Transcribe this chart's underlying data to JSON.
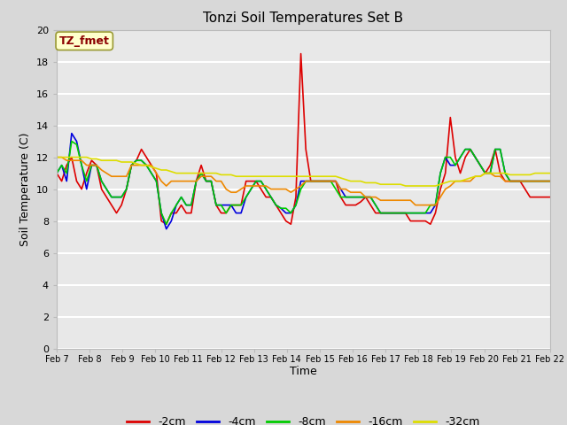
{
  "title": "Tonzi Soil Temperatures Set B",
  "xlabel": "Time",
  "ylabel": "Soil Temperature (C)",
  "ylim": [
    0,
    20
  ],
  "yticks": [
    0,
    2,
    4,
    6,
    8,
    10,
    12,
    14,
    16,
    18,
    20
  ],
  "x_labels": [
    "Feb 7",
    "Feb 8",
    "Feb 9",
    "Feb 10",
    "Feb 11",
    "Feb 12",
    "Feb 13",
    "Feb 14",
    "Feb 15",
    "Feb 16",
    "Feb 17",
    "Feb 18",
    "Feb 19",
    "Feb 20",
    "Feb 21",
    "Feb 22"
  ],
  "fig_bg_color": "#d8d8d8",
  "plot_bg_color": "#e8e8e8",
  "annotation_text": "TZ_fmet",
  "annotation_color": "#8b0000",
  "annotation_bg": "#ffffcc",
  "annotation_edge": "#999933",
  "series": {
    "neg2cm": {
      "label": "-2cm",
      "color": "#dd0000",
      "data": [
        11.0,
        10.5,
        11.5,
        12.0,
        10.5,
        10.0,
        11.0,
        11.8,
        11.5,
        10.0,
        9.5,
        9.0,
        8.5,
        9.0,
        10.0,
        11.5,
        11.8,
        12.5,
        12.0,
        11.5,
        11.0,
        8.0,
        7.8,
        8.5,
        8.5,
        9.0,
        8.5,
        8.5,
        10.5,
        11.5,
        10.5,
        10.5,
        9.0,
        8.5,
        8.5,
        9.0,
        9.0,
        9.0,
        10.5,
        10.5,
        10.5,
        10.0,
        9.5,
        9.5,
        9.0,
        8.5,
        8.0,
        7.8,
        9.5,
        18.5,
        12.5,
        10.5,
        10.5,
        10.5,
        10.5,
        10.5,
        10.5,
        9.5,
        9.0,
        9.0,
        9.0,
        9.2,
        9.5,
        9.0,
        8.5,
        8.5,
        8.5,
        8.5,
        8.5,
        8.5,
        8.5,
        8.0,
        8.0,
        8.0,
        8.0,
        7.8,
        8.5,
        10.0,
        11.0,
        14.5,
        12.0,
        11.0,
        12.0,
        12.5,
        12.0,
        11.5,
        11.0,
        11.5,
        12.5,
        11.0,
        10.5,
        10.5,
        10.5,
        10.5,
        10.0,
        9.5,
        9.5,
        9.5,
        9.5,
        9.5
      ]
    },
    "neg4cm": {
      "label": "-4cm",
      "color": "#0000dd",
      "data": [
        11.0,
        11.5,
        10.5,
        13.5,
        13.0,
        11.5,
        10.0,
        11.5,
        11.5,
        10.5,
        10.0,
        9.5,
        9.5,
        9.5,
        10.0,
        11.5,
        11.8,
        11.8,
        11.5,
        11.0,
        10.5,
        8.5,
        7.5,
        8.0,
        9.0,
        9.5,
        9.0,
        9.0,
        10.5,
        11.0,
        10.5,
        10.5,
        9.0,
        9.0,
        9.0,
        9.0,
        8.5,
        8.5,
        9.5,
        10.0,
        10.5,
        10.5,
        10.0,
        9.5,
        9.0,
        8.8,
        8.5,
        8.5,
        9.0,
        10.5,
        10.5,
        10.5,
        10.5,
        10.5,
        10.5,
        10.5,
        10.5,
        10.0,
        9.5,
        9.5,
        9.5,
        9.5,
        9.5,
        9.5,
        9.0,
        8.5,
        8.5,
        8.5,
        8.5,
        8.5,
        8.5,
        8.5,
        8.5,
        8.5,
        8.5,
        8.5,
        9.0,
        11.0,
        12.0,
        11.5,
        11.5,
        12.0,
        12.5,
        12.5,
        12.0,
        11.5,
        11.0,
        11.0,
        12.5,
        12.5,
        11.0,
        10.5,
        10.5,
        10.5,
        10.5,
        10.5,
        10.5,
        10.5,
        10.5,
        10.5
      ]
    },
    "neg8cm": {
      "label": "-8cm",
      "color": "#00cc00",
      "data": [
        11.0,
        11.5,
        11.0,
        13.0,
        12.8,
        11.5,
        10.5,
        11.5,
        11.5,
        10.5,
        10.0,
        9.5,
        9.5,
        9.5,
        10.0,
        11.5,
        11.8,
        11.8,
        11.5,
        11.0,
        10.5,
        8.5,
        7.8,
        8.5,
        9.0,
        9.5,
        9.0,
        9.0,
        10.5,
        11.0,
        10.5,
        10.5,
        9.0,
        9.0,
        8.5,
        9.0,
        9.0,
        9.0,
        9.5,
        10.0,
        10.5,
        10.5,
        10.0,
        9.5,
        9.0,
        8.8,
        8.8,
        8.5,
        9.0,
        10.0,
        10.5,
        10.5,
        10.5,
        10.5,
        10.5,
        10.5,
        10.0,
        9.5,
        9.5,
        9.5,
        9.5,
        9.5,
        9.5,
        9.5,
        9.0,
        8.5,
        8.5,
        8.5,
        8.5,
        8.5,
        8.5,
        8.5,
        8.5,
        8.5,
        8.5,
        9.0,
        9.0,
        11.0,
        12.0,
        12.0,
        11.5,
        12.0,
        12.5,
        12.5,
        12.0,
        11.5,
        11.0,
        11.0,
        12.5,
        12.5,
        11.0,
        10.5,
        10.5,
        10.5,
        10.5,
        10.5,
        10.5,
        10.5,
        10.5,
        10.5
      ]
    },
    "neg16cm": {
      "label": "-16cm",
      "color": "#ee8800",
      "data": [
        12.0,
        12.0,
        11.8,
        11.8,
        11.8,
        11.8,
        11.5,
        11.5,
        11.5,
        11.2,
        11.0,
        10.8,
        10.8,
        10.8,
        10.8,
        11.5,
        11.5,
        11.5,
        11.5,
        11.5,
        11.0,
        10.5,
        10.2,
        10.5,
        10.5,
        10.5,
        10.5,
        10.5,
        10.5,
        10.8,
        10.8,
        10.8,
        10.5,
        10.5,
        10.0,
        9.8,
        9.8,
        10.0,
        10.2,
        10.2,
        10.2,
        10.2,
        10.2,
        10.0,
        10.0,
        10.0,
        10.0,
        9.8,
        10.0,
        10.2,
        10.5,
        10.5,
        10.5,
        10.5,
        10.5,
        10.5,
        10.5,
        10.0,
        10.0,
        9.8,
        9.8,
        9.8,
        9.5,
        9.5,
        9.5,
        9.3,
        9.3,
        9.3,
        9.3,
        9.3,
        9.3,
        9.3,
        9.0,
        9.0,
        9.0,
        9.0,
        9.0,
        9.5,
        10.0,
        10.2,
        10.5,
        10.5,
        10.5,
        10.5,
        10.8,
        10.8,
        11.0,
        11.0,
        10.8,
        10.8,
        10.5,
        10.5,
        10.5,
        10.5,
        10.5,
        10.5,
        10.5,
        10.5,
        10.5,
        10.5
      ]
    },
    "neg32cm": {
      "label": "-32cm",
      "color": "#dddd00",
      "data": [
        12.0,
        12.0,
        12.0,
        12.0,
        12.0,
        12.0,
        12.0,
        11.9,
        11.9,
        11.8,
        11.8,
        11.8,
        11.8,
        11.7,
        11.7,
        11.7,
        11.6,
        11.5,
        11.5,
        11.4,
        11.3,
        11.2,
        11.2,
        11.1,
        11.0,
        11.0,
        11.0,
        11.0,
        11.0,
        11.0,
        11.0,
        11.0,
        11.0,
        10.9,
        10.9,
        10.9,
        10.8,
        10.8,
        10.8,
        10.8,
        10.8,
        10.8,
        10.8,
        10.8,
        10.8,
        10.8,
        10.8,
        10.8,
        10.8,
        10.8,
        10.8,
        10.8,
        10.8,
        10.8,
        10.8,
        10.8,
        10.8,
        10.7,
        10.6,
        10.5,
        10.5,
        10.5,
        10.4,
        10.4,
        10.4,
        10.3,
        10.3,
        10.3,
        10.3,
        10.3,
        10.2,
        10.2,
        10.2,
        10.2,
        10.2,
        10.2,
        10.2,
        10.3,
        10.4,
        10.5,
        10.5,
        10.5,
        10.6,
        10.7,
        10.8,
        10.8,
        11.0,
        11.0,
        11.0,
        11.0,
        11.0,
        10.9,
        10.9,
        10.9,
        10.9,
        10.9,
        11.0,
        11.0,
        11.0,
        11.0
      ]
    }
  }
}
